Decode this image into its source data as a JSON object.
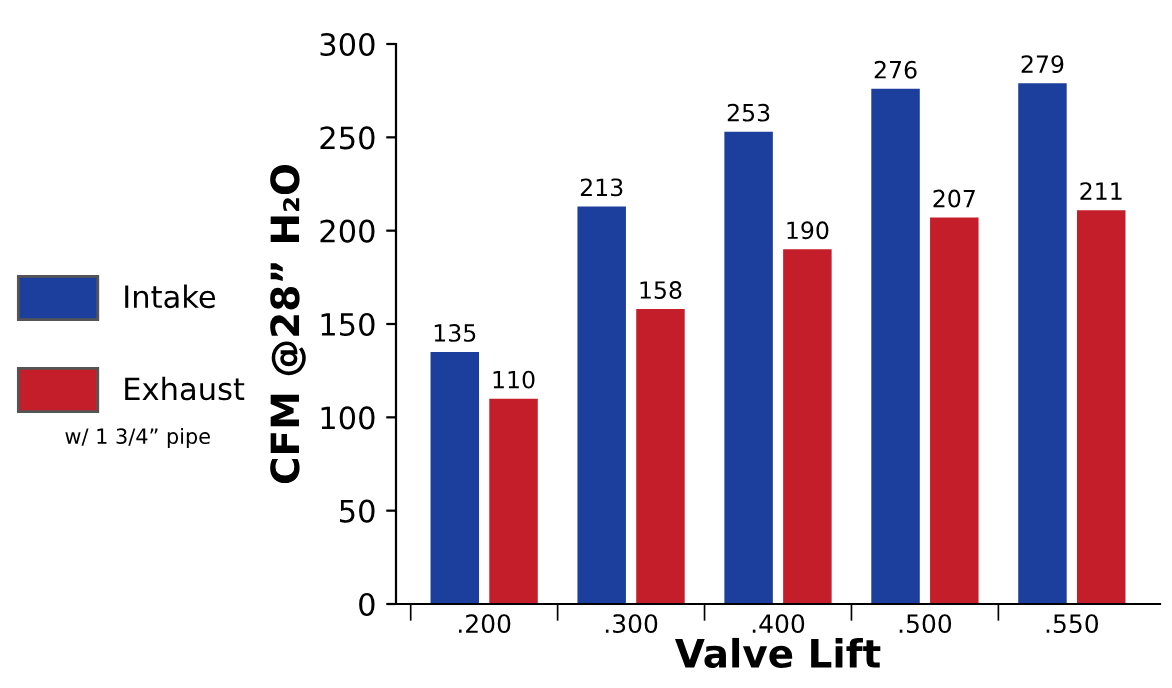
{
  "chart_data": {
    "type": "bar",
    "xlabel": "Valve Lift",
    "ylabel": "CFM @28” H₂O",
    "categories": [
      ".200",
      ".300",
      ".400",
      ".500",
      ".550"
    ],
    "series": [
      {
        "name": "Intake",
        "color": "#1c3f9e",
        "values": [
          135,
          213,
          253,
          276,
          279
        ]
      },
      {
        "name": "Exhaust",
        "color": "#c41e2a",
        "values": [
          110,
          158,
          190,
          207,
          211
        ]
      }
    ],
    "ylim": [
      0,
      300
    ],
    "yticks": [
      0,
      50,
      100,
      150,
      200,
      250,
      300
    ],
    "data_labels": true,
    "legend": "left",
    "grid": false,
    "annotations": [
      "w/ 1 3/4” pipe"
    ]
  }
}
